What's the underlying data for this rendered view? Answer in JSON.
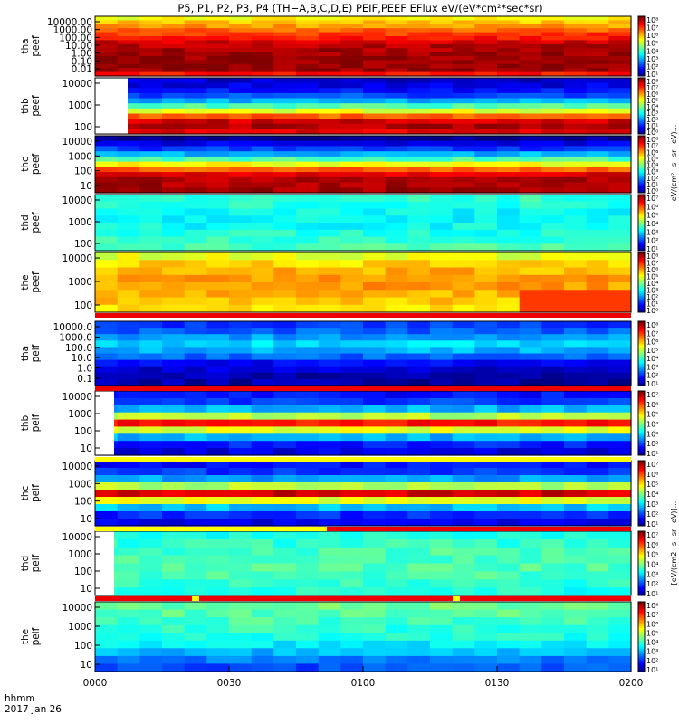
{
  "title": "P5, P1, P2, P3, P4 (TH−A,B,C,D,E) PEIF,PEEF EFlux eV/(eV*cm²*sec*sr)",
  "x_axis": {
    "label_line1": "hhmm",
    "label_line2": "2017 Jan 26",
    "ticks": [
      "0000",
      "0030",
      "0100",
      "0130",
      "0200"
    ]
  },
  "colors": {
    "flag_red": "#ee0000",
    "flag_yellow": "#ffff00",
    "flag_white": "#ffffff"
  },
  "colorbar_label_top": "eV/(cm²−s−sr−eV)...",
  "colorbar_label_bottom": "[eV/(cm2−s−sr−eV)]...",
  "chart_data": [
    {
      "type": "heatmap",
      "probe": "tha",
      "species": "peef",
      "ylabel": "tha\npeef",
      "yticks": [
        "10000.00",
        "1000.00",
        "100.00",
        "10.00",
        "1.00",
        "0.10",
        "0.01"
      ],
      "cbar_ticks": [
        "10⁸",
        "10⁷",
        "10⁶",
        "10⁵",
        "10⁴",
        "10³",
        "10²",
        "10¹"
      ],
      "cmap_profile": [
        0.62,
        0.68,
        0.72,
        0.78,
        0.82,
        0.86,
        0.92,
        0.95,
        0.96,
        0.97,
        0.98,
        0.98,
        0.98,
        0.98,
        0.86
      ],
      "start_gap": 0
    },
    {
      "type": "heatmap",
      "probe": "thb",
      "species": "peef",
      "ylabel": "thb\npeef",
      "yticks": [
        "10000",
        "1000",
        "100"
      ],
      "cbar_ticks": [
        "10⁸",
        "10⁷",
        "10⁶",
        "10⁵",
        "10⁴",
        "10³",
        "10²",
        "10¹",
        "10⁰"
      ],
      "cmap_profile": [
        0.08,
        0.1,
        0.14,
        0.2,
        0.3,
        0.45,
        0.6,
        0.78,
        0.92,
        0.95,
        0.9
      ],
      "start_gap": 0.06
    },
    {
      "type": "heatmap",
      "probe": "thc",
      "species": "peef",
      "ylabel": "thc\npeef",
      "yticks": [
        "10000",
        "1000",
        "100",
        "10"
      ],
      "cbar_ticks": [
        "10⁸",
        "10⁷",
        "10⁶",
        "10⁵",
        "10⁴",
        "10³",
        "10²",
        "10¹",
        "10⁰"
      ],
      "cmap_profile": [
        0.02,
        0.1,
        0.18,
        0.3,
        0.45,
        0.62,
        0.78,
        0.9,
        0.95,
        0.96,
        0.96
      ],
      "start_gap": 0
    },
    {
      "type": "heatmap",
      "probe": "thd",
      "species": "peef",
      "ylabel": "thd\npeef",
      "yticks": [
        "10000",
        "1000",
        "100"
      ],
      "cbar_ticks": [
        "10⁷",
        "10⁶",
        "10⁵",
        "10⁴",
        "10³",
        "10²",
        "10¹"
      ],
      "cmap_profile": [
        0.42,
        0.4,
        0.38,
        0.37,
        0.38,
        0.4,
        0.42,
        0.44
      ],
      "start_gap": 0
    },
    {
      "type": "heatmap",
      "probe": "the",
      "species": "peef",
      "ylabel": "the\npeef",
      "yticks": [
        "10000",
        "1000",
        "100"
      ],
      "cbar_ticks": [
        "10⁸",
        "10⁷",
        "10⁶",
        "10⁵",
        "10⁴",
        "10³",
        "10²",
        "10¹",
        "10⁰"
      ],
      "cmap_profile": [
        0.6,
        0.66,
        0.7,
        0.72,
        0.72,
        0.7,
        0.68,
        0.66
      ],
      "start_gap": 0
    },
    {
      "type": "heatmap",
      "probe": "tha",
      "species": "peif",
      "ylabel": "tha\npeif",
      "yticks": [
        "10000.0",
        "1000.0",
        "100.0",
        "10.0",
        "1.0",
        "0.1"
      ],
      "cbar_ticks": [
        "10⁸",
        "10⁷",
        "10⁶",
        "10⁵",
        "10⁴",
        "10³",
        "10²",
        "10¹"
      ],
      "cmap_profile": [
        0.18,
        0.22,
        0.28,
        0.34,
        0.3,
        0.22,
        0.12,
        0.08,
        0.05,
        0.04
      ],
      "start_gap": 0
    },
    {
      "type": "heatmap",
      "probe": "thb",
      "species": "peif",
      "ylabel": "thb\npeif",
      "yticks": [
        "10000",
        "1000",
        "100",
        "10"
      ],
      "cbar_ticks": [
        "10⁷",
        "10⁶",
        "10⁵",
        "10⁴",
        "10³",
        "10²",
        "10¹"
      ],
      "cmap_profile": [
        0.14,
        0.18,
        0.3,
        0.55,
        0.86,
        0.6,
        0.3,
        0.15,
        0.1
      ],
      "start_gap": 0.035
    },
    {
      "type": "heatmap",
      "probe": "thc",
      "species": "peif",
      "ylabel": "thc\npeif",
      "yticks": [
        "10000",
        "1000",
        "100",
        "10"
      ],
      "cbar_ticks": [
        "10⁷",
        "10⁶",
        "10⁵",
        "10⁴",
        "10³",
        "10²",
        "10¹"
      ],
      "cmap_profile": [
        0.14,
        0.18,
        0.28,
        0.55,
        0.92,
        0.6,
        0.32,
        0.16,
        0.1
      ],
      "start_gap": 0
    },
    {
      "type": "heatmap",
      "probe": "thd",
      "species": "peif",
      "ylabel": "thd\npeif",
      "yticks": [
        "10000",
        "1000",
        "100",
        "10"
      ],
      "cbar_ticks": [
        "10⁷",
        "10⁶",
        "10⁵",
        "10⁴",
        "10³",
        "10²",
        "10¹"
      ],
      "cmap_profile": [
        0.4,
        0.42,
        0.44,
        0.45,
        0.45,
        0.44,
        0.42,
        0.4
      ],
      "start_gap": 0.035
    },
    {
      "type": "heatmap",
      "probe": "the",
      "species": "peif",
      "ylabel": "the\npeif",
      "yticks": [
        "10000",
        "1000",
        "100",
        "10"
      ],
      "cbar_ticks": [
        "10⁸",
        "10⁷",
        "10⁶",
        "10⁵",
        "10⁴",
        "10³",
        "10²",
        "10¹"
      ],
      "cmap_profile": [
        0.48,
        0.46,
        0.44,
        0.42,
        0.4,
        0.36,
        0.3,
        0.24,
        0.2
      ],
      "start_gap": 0
    }
  ]
}
